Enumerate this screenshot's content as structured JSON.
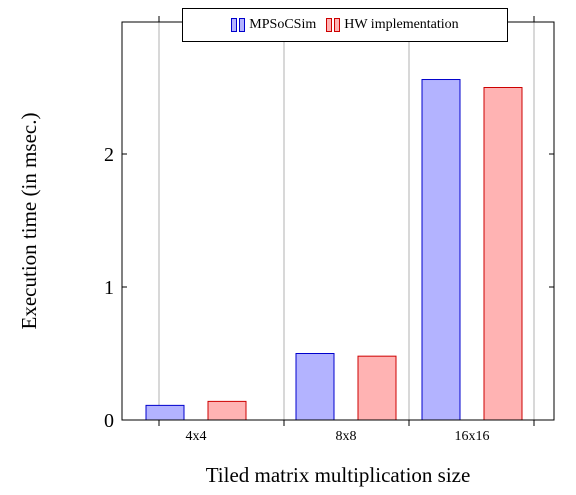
{
  "chart_data": {
    "type": "bar",
    "categories": [
      "4x4",
      "8x8",
      "16x16"
    ],
    "series": [
      {
        "name": "MPSoCSim",
        "values": [
          0.11,
          0.5,
          2.56
        ],
        "fill": "#b3b3ff",
        "stroke": "#0000cc"
      },
      {
        "name": "HW implementation",
        "values": [
          0.14,
          0.48,
          2.5
        ],
        "fill": "#ffb3b3",
        "stroke": "#cc0000"
      }
    ],
    "title": "",
    "xlabel": "Tiled matrix multiplication size",
    "ylabel": "Execution time (in msec.)",
    "ylim": [
      0,
      2.8
    ],
    "yticks": [
      0,
      1,
      2
    ],
    "grid": "vertical",
    "legend": "top-center"
  }
}
